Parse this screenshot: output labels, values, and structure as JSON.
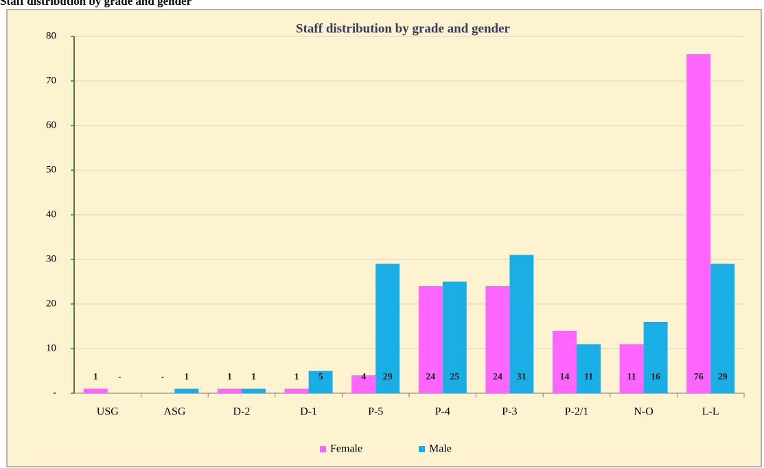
{
  "heading": "Staff distribution by grade and gender",
  "chart_data": {
    "type": "bar",
    "title": "Staff distribution by grade and gender",
    "categories": [
      "USG",
      "ASG",
      "D-2",
      "D-1",
      "P-5",
      "P-4",
      "P-3",
      "P-2/1",
      "N-O",
      "L-L"
    ],
    "series": [
      {
        "name": "Female",
        "color": "#ff66ff",
        "values": [
          1,
          0,
          1,
          1,
          4,
          24,
          24,
          14,
          11,
          76
        ],
        "value_labels": [
          "1",
          "-",
          "1",
          "1",
          "4",
          "24",
          "24",
          "14",
          "11",
          "76"
        ]
      },
      {
        "name": "Male",
        "color": "#1aaee6",
        "values": [
          0,
          1,
          1,
          5,
          29,
          25,
          31,
          11,
          16,
          29
        ],
        "value_labels": [
          "-",
          "1",
          "1",
          "5",
          "29",
          "25",
          "31",
          "11",
          "16",
          "29"
        ]
      }
    ],
    "ylim": [
      0,
      80
    ],
    "yticks": [
      {
        "value": 0,
        "label": "-"
      },
      10,
      20,
      30,
      40,
      50,
      60,
      70,
      80
    ],
    "grid": true,
    "legend": "bottom"
  }
}
